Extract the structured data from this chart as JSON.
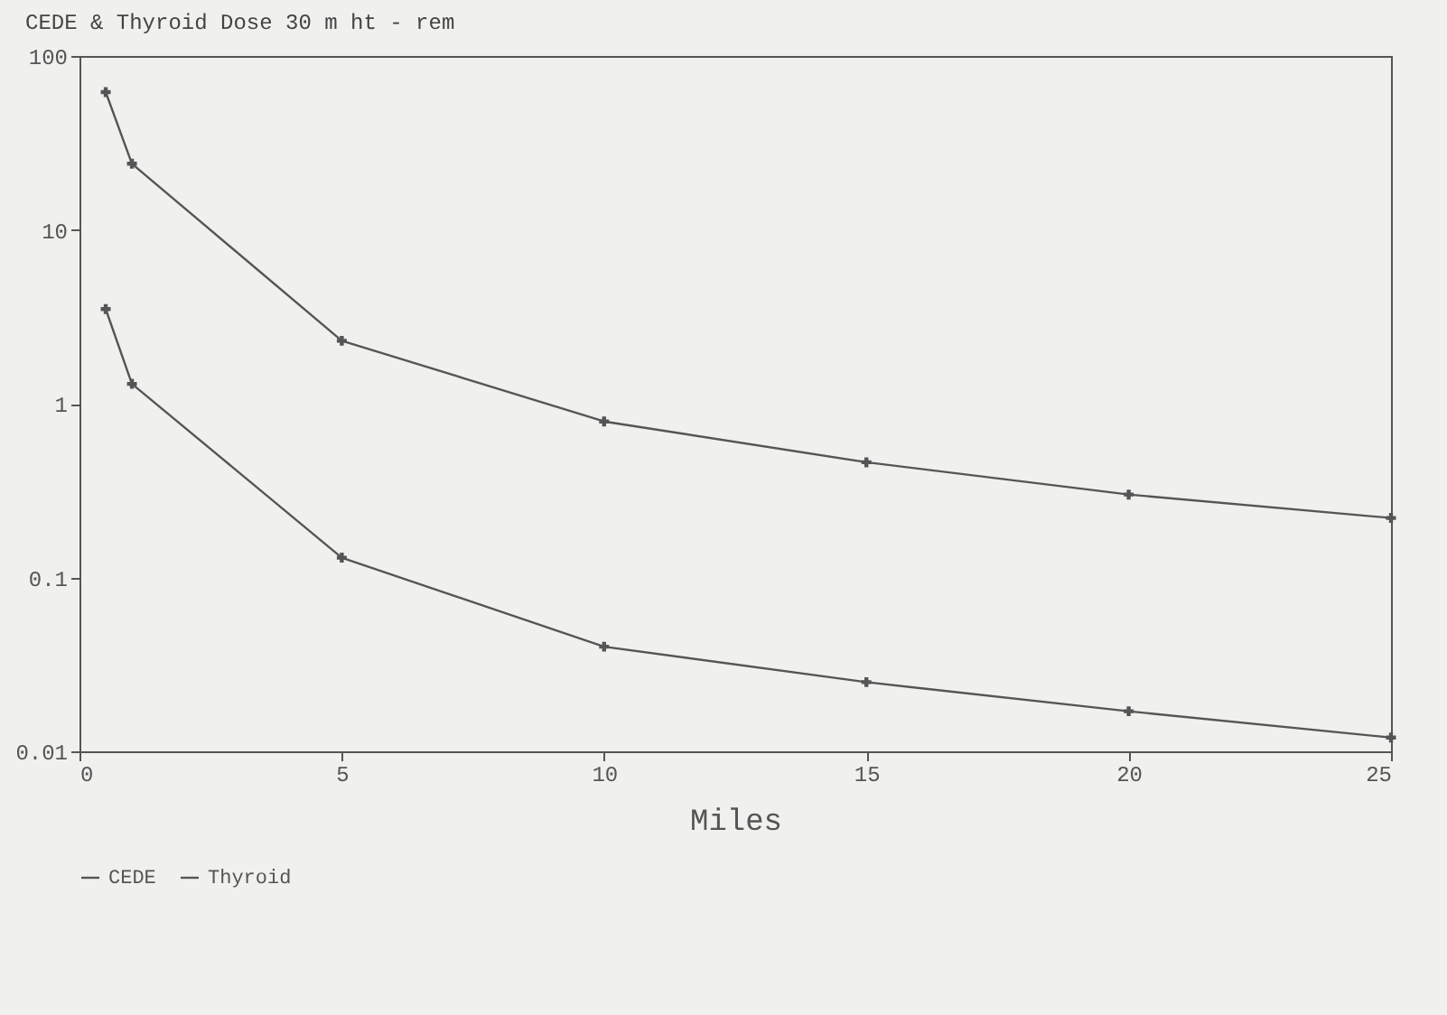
{
  "chart_data": {
    "type": "line",
    "title": "CEDE & Thyroid Dose 30 m ht - rem",
    "xlabel": "Miles",
    "x": [
      0.5,
      1,
      5,
      10,
      15,
      20,
      25
    ],
    "series": [
      {
        "name": "CEDE",
        "color": "#555555",
        "values": [
          3.5,
          1.3,
          0.13,
          0.04,
          0.025,
          0.017,
          0.012
        ]
      },
      {
        "name": "Thyroid",
        "color": "#555555",
        "values": [
          62,
          24,
          2.3,
          0.79,
          0.46,
          0.3,
          0.22
        ]
      }
    ],
    "xlim": [
      0,
      25
    ],
    "xticks": [
      0,
      5,
      10,
      15,
      20,
      25
    ],
    "ylim": [
      0.01,
      100
    ],
    "yticks": [
      0.01,
      0.1,
      1,
      10,
      100
    ],
    "log": "y",
    "grid": false,
    "legend": "bottom",
    "marker": "cross",
    "line_style": "solid"
  }
}
